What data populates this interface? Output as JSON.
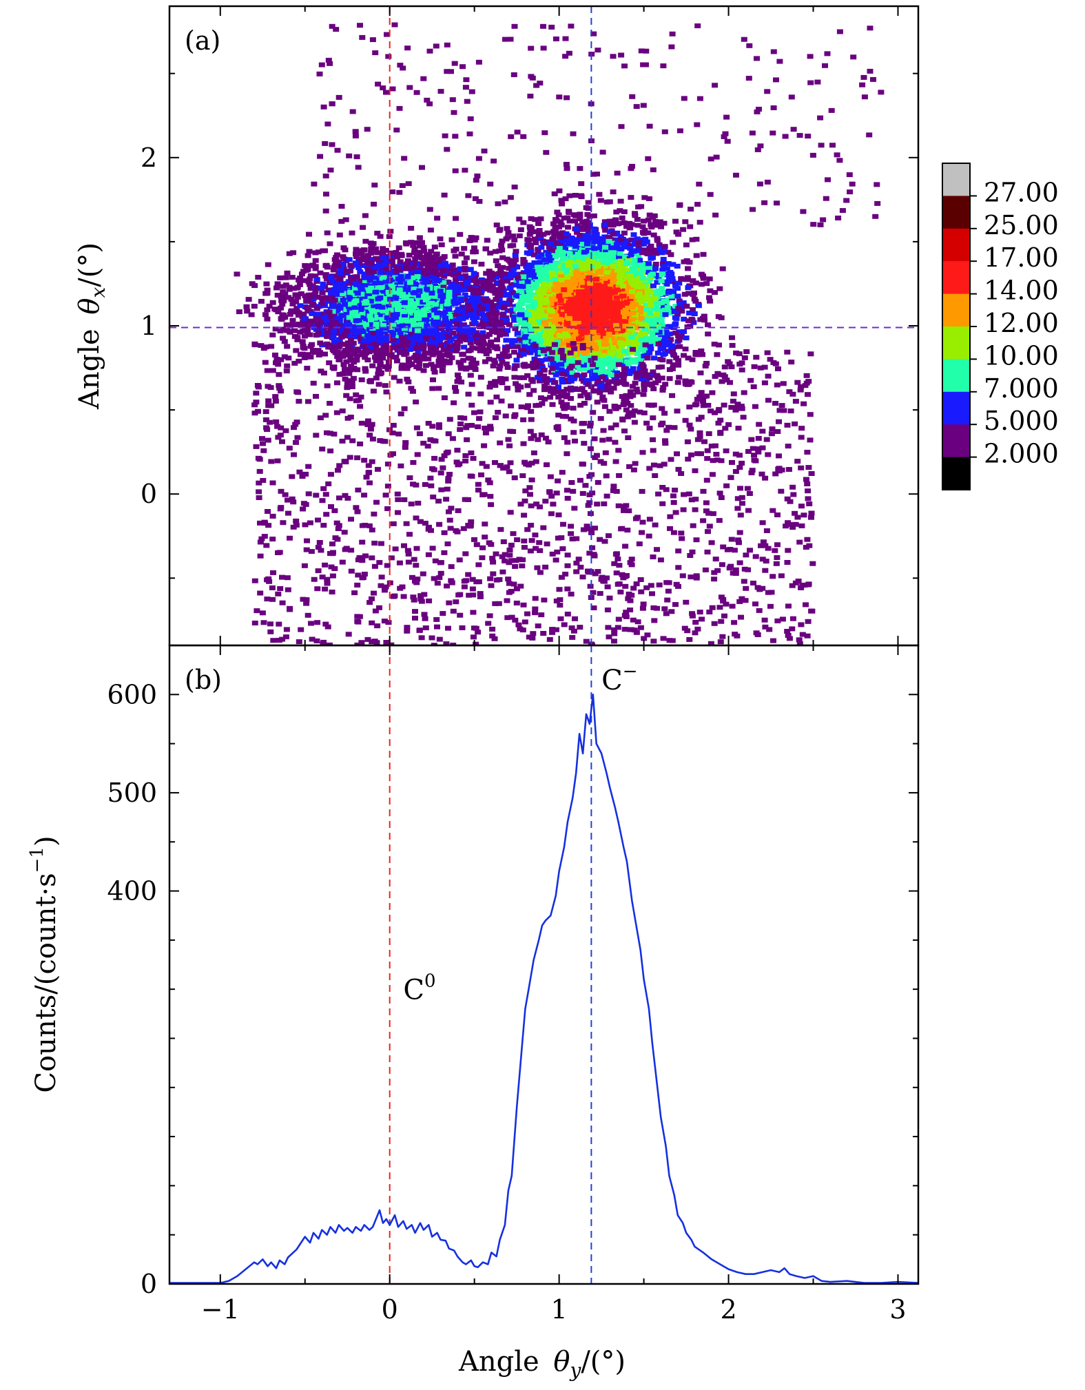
{
  "chart_data": [
    {
      "panel": "(a)",
      "type": "heatmap",
      "title": "",
      "xlabel": "",
      "ylabel_main": "Angle",
      "ylabel_symbol": "θ",
      "ylabel_sub": "x",
      "ylabel_unit": "/(°)",
      "xlim": [
        -1.3,
        3.12
      ],
      "ylim": [
        -0.9,
        2.9
      ],
      "xticks": [
        -1,
        0,
        1,
        2,
        3
      ],
      "yticks": [
        0,
        1,
        2
      ],
      "ytick_labels": [
        "0",
        "1",
        "2"
      ],
      "ref_lines": [
        {
          "orientation": "vertical",
          "value": 0.0,
          "color": "#e8251c"
        },
        {
          "orientation": "vertical",
          "value": 1.19,
          "color": "#1f3fd4"
        },
        {
          "orientation": "horizontal",
          "value": 0.99,
          "color": "#6d2bd0"
        }
      ],
      "blobs": [
        {
          "cx": 0.05,
          "cy": 1.12,
          "sx": 0.55,
          "sy": 0.27,
          "peak": 6
        },
        {
          "cx": 1.2,
          "cy": 1.1,
          "sx": 0.42,
          "sy": 0.35,
          "peak": 14
        },
        {
          "cx": 1.12,
          "cy": 0.9,
          "sx": 0.2,
          "sy": 0.12,
          "peak": 12
        }
      ],
      "colorbar": {
        "labels": [
          "27.00",
          "25.00",
          "17.00",
          "14.00",
          "12.00",
          "10.00",
          "7.000",
          "5.000",
          "2.000"
        ],
        "colors": [
          "#c0c0c0",
          "#5a0000",
          "#d40000",
          "#ff1a1a",
          "#ff9900",
          "#99ee00",
          "#22ffaa",
          "#1a1aff",
          "#6a0080",
          "#000000"
        ]
      }
    },
    {
      "panel": "(b)",
      "type": "line",
      "title": "",
      "xlabel_main": "Angle",
      "xlabel_symbol": "θ",
      "xlabel_sub": "y",
      "xlabel_unit": "/(°)",
      "ylabel": "Counts/(count·s",
      "ylabel_sup": "−1",
      "ylabel_close": ")",
      "xlim": [
        -1.3,
        3.12
      ],
      "ylim": [
        0,
        650
      ],
      "xticks": [
        -1,
        0,
        1,
        2,
        3
      ],
      "xtick_labels": [
        "−1",
        "0",
        "1",
        "2",
        "3"
      ],
      "yticks": [
        0,
        400,
        500,
        600
      ],
      "ytick_labels": [
        "0",
        "400",
        "500",
        "600"
      ],
      "series": [
        {
          "name": "counts",
          "color": "#1530e0",
          "x": [
            -1.3,
            -1.0,
            -0.95,
            -0.9,
            -0.85,
            -0.8,
            -0.78,
            -0.75,
            -0.72,
            -0.7,
            -0.67,
            -0.65,
            -0.62,
            -0.6,
            -0.55,
            -0.5,
            -0.47,
            -0.45,
            -0.42,
            -0.4,
            -0.37,
            -0.35,
            -0.32,
            -0.3,
            -0.27,
            -0.25,
            -0.22,
            -0.2,
            -0.17,
            -0.15,
            -0.12,
            -0.1,
            -0.06,
            -0.04,
            -0.02,
            0.0,
            0.03,
            0.05,
            0.08,
            0.1,
            0.13,
            0.15,
            0.18,
            0.2,
            0.23,
            0.25,
            0.28,
            0.3,
            0.33,
            0.35,
            0.38,
            0.4,
            0.43,
            0.45,
            0.48,
            0.5,
            0.52,
            0.55,
            0.58,
            0.6,
            0.63,
            0.65,
            0.68,
            0.7,
            0.72,
            0.75,
            0.78,
            0.8,
            0.82,
            0.85,
            0.88,
            0.9,
            0.92,
            0.95,
            0.98,
            1.0,
            1.03,
            1.05,
            1.08,
            1.1,
            1.12,
            1.14,
            1.16,
            1.18,
            1.2,
            1.22,
            1.25,
            1.28,
            1.3,
            1.33,
            1.35,
            1.38,
            1.4,
            1.43,
            1.45,
            1.48,
            1.5,
            1.53,
            1.55,
            1.58,
            1.6,
            1.63,
            1.65,
            1.68,
            1.7,
            1.73,
            1.75,
            1.78,
            1.8,
            1.85,
            1.9,
            1.95,
            2.0,
            2.05,
            2.1,
            2.15,
            2.2,
            2.25,
            2.3,
            2.33,
            2.36,
            2.4,
            2.45,
            2.5,
            2.55,
            2.6,
            2.7,
            2.8,
            2.9,
            3.0,
            3.12
          ],
          "values": [
            1,
            1,
            3,
            8,
            15,
            22,
            20,
            25,
            18,
            22,
            16,
            24,
            20,
            27,
            35,
            48,
            42,
            52,
            46,
            55,
            50,
            58,
            52,
            60,
            54,
            57,
            52,
            58,
            54,
            60,
            55,
            58,
            75,
            62,
            66,
            60,
            70,
            58,
            64,
            56,
            60,
            52,
            62,
            55,
            60,
            48,
            52,
            45,
            44,
            36,
            34,
            28,
            22,
            20,
            24,
            18,
            17,
            22,
            20,
            32,
            28,
            45,
            60,
            95,
            110,
            180,
            240,
            280,
            300,
            330,
            350,
            365,
            370,
            375,
            395,
            420,
            445,
            470,
            495,
            520,
            560,
            540,
            580,
            570,
            600,
            550,
            540,
            520,
            505,
            485,
            470,
            445,
            430,
            390,
            370,
            340,
            310,
            280,
            245,
            200,
            170,
            140,
            110,
            90,
            70,
            62,
            52,
            45,
            38,
            32,
            25,
            20,
            15,
            12,
            10,
            10,
            12,
            14,
            12,
            16,
            10,
            8,
            6,
            8,
            3,
            2,
            3,
            1,
            1,
            2,
            1
          ]
        }
      ],
      "ref_lines": [
        {
          "orientation": "vertical",
          "value": 0.0,
          "color": "#e8251c"
        },
        {
          "orientation": "vertical",
          "value": 1.19,
          "color": "#1f3fd4"
        }
      ],
      "annotations": [
        {
          "base": "C",
          "sup": "0",
          "x": 0.08,
          "y": 290
        },
        {
          "base": "C",
          "sup": "−",
          "x": 1.25,
          "y": 605
        }
      ]
    }
  ]
}
